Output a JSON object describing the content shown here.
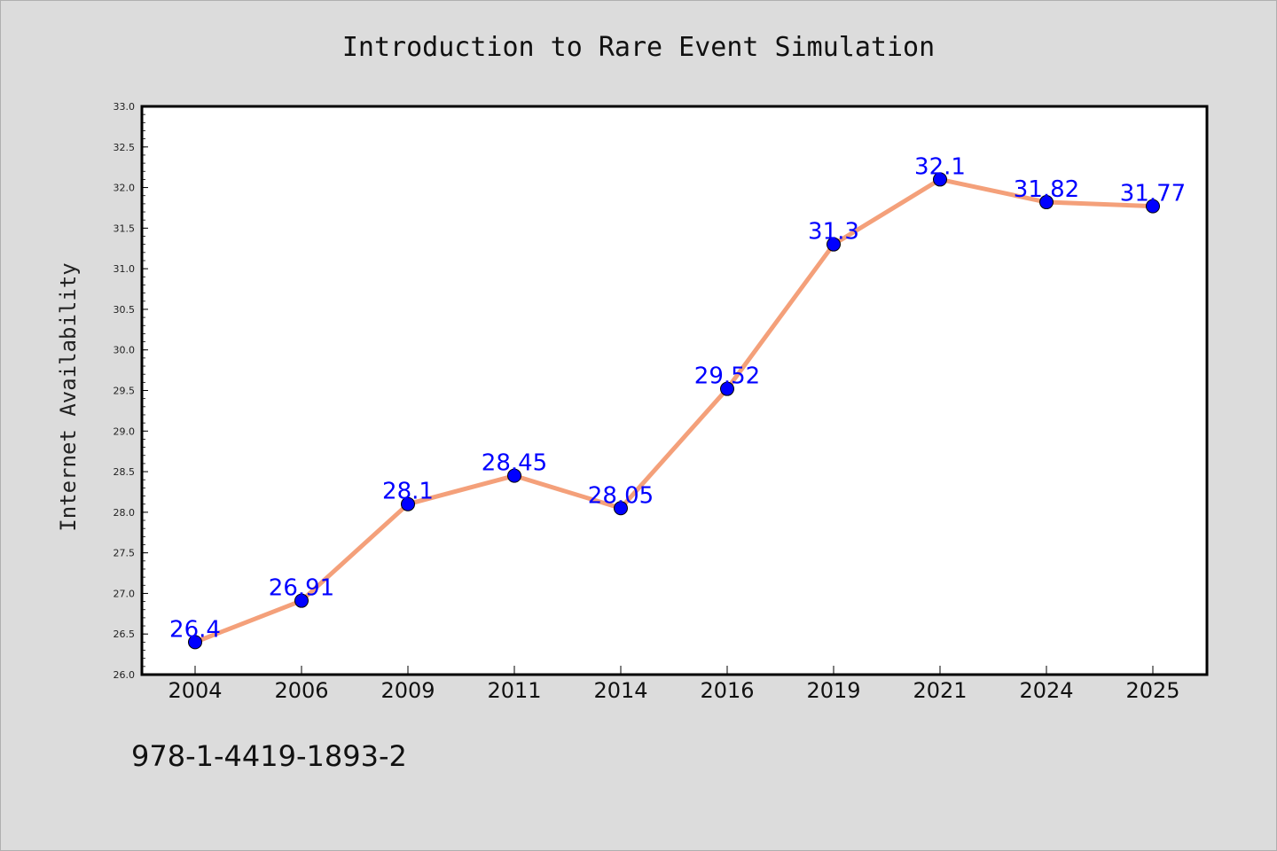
{
  "chart_data": {
    "type": "line",
    "title": "Introduction to Rare Event Simulation",
    "xlabel": "",
    "ylabel": "Internet Availability",
    "categories": [
      "2004",
      "2006",
      "2009",
      "2011",
      "2014",
      "2016",
      "2019",
      "2021",
      "2024",
      "2025"
    ],
    "series": [
      {
        "values": [
          26.4,
          26.91,
          28.1,
          28.45,
          28.05,
          29.52,
          31.3,
          32.1,
          31.82,
          31.77
        ]
      }
    ],
    "data_labels": [
      "26.4",
      "26.91",
      "28.1",
      "28.45",
      "28.05",
      "29.52",
      "31.3",
      "32.1",
      "31.82",
      "31.77"
    ],
    "ylim": [
      26.0,
      33.0
    ],
    "yticks": [
      "26.0",
      "26.5",
      "27.0",
      "27.5",
      "28.0",
      "28.5",
      "29.0",
      "29.5",
      "30.0",
      "30.5",
      "31.0",
      "31.5",
      "32.0",
      "32.5",
      "33.0"
    ],
    "grid": false,
    "legend": "none",
    "colors": {
      "line": "#f4a07a",
      "marker": "#0000ff",
      "label": "#0000ff",
      "background": "#dcdcdc",
      "plot_area": "#ffffff"
    }
  },
  "footer": {
    "isbn": "978-1-4419-1893-2"
  }
}
